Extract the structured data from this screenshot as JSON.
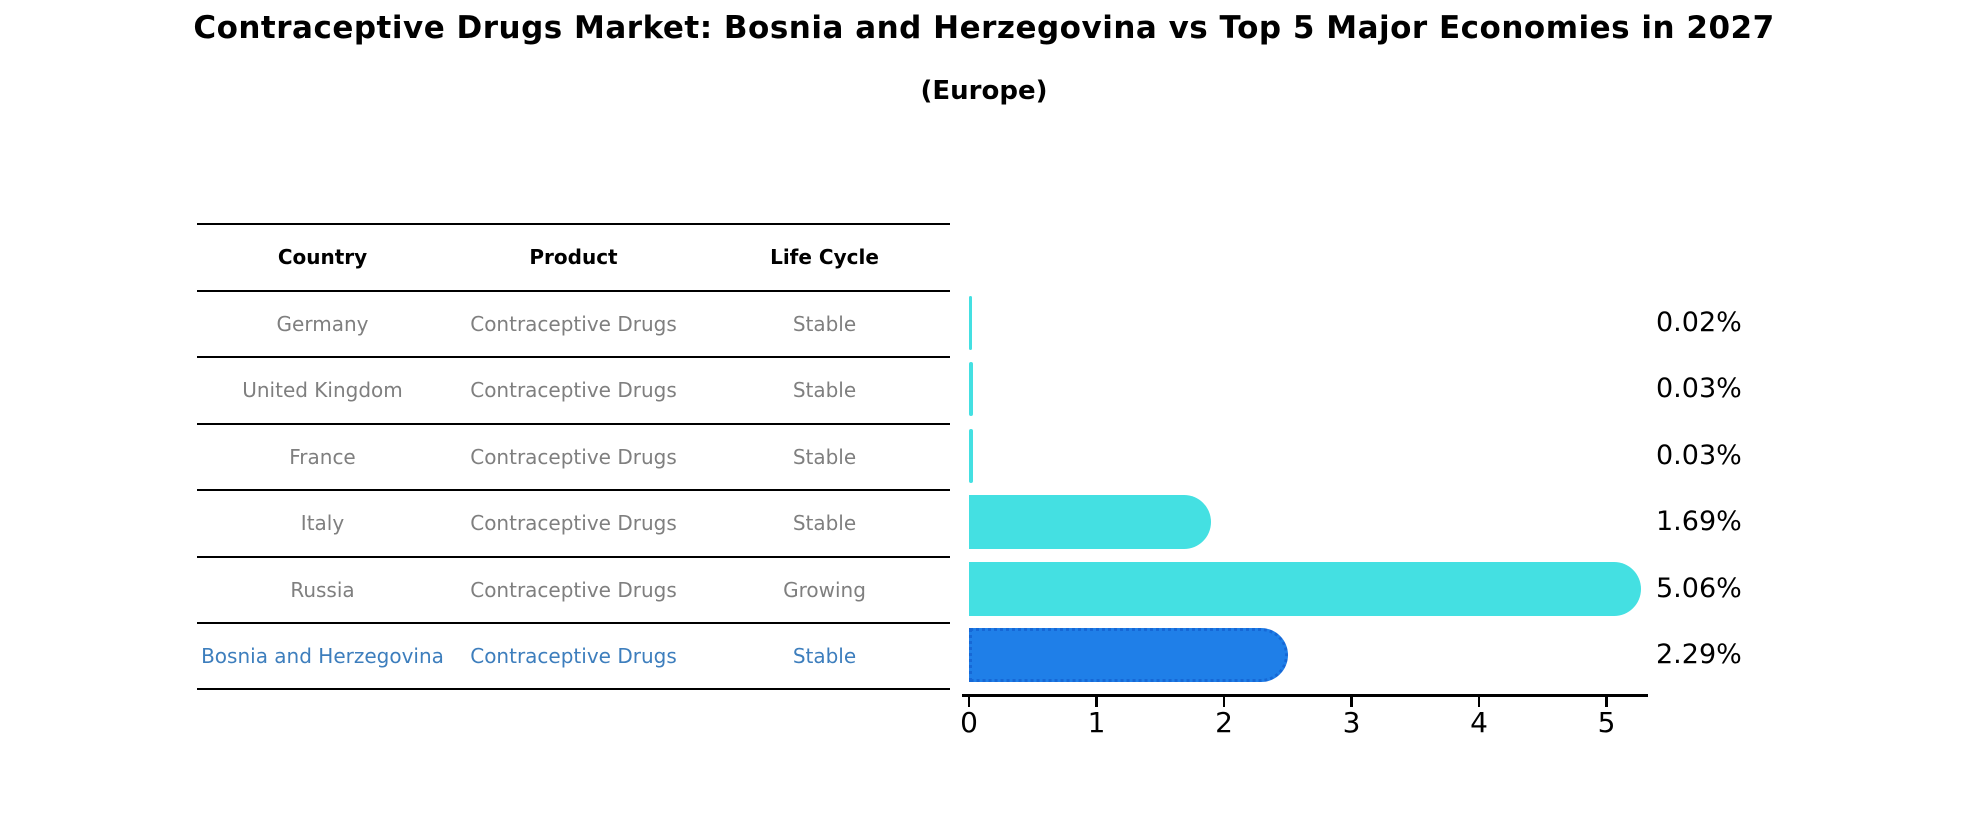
{
  "colors": {
    "bar_default": "#44E0E2",
    "bar_highlight": "#1F7FE8",
    "bar_highlight_border": "#1668D6",
    "row_text": "#7F7F7F",
    "highlight_text": "#3D7EBD"
  },
  "table": {
    "headers": [
      "Country",
      "Product",
      "Life Cycle"
    ],
    "rows": [
      {
        "country": "Germany",
        "product": "Contraceptive Drugs",
        "life_cycle": "Stable",
        "highlight": false
      },
      {
        "country": "United Kingdom",
        "product": "Contraceptive Drugs",
        "life_cycle": "Stable",
        "highlight": false
      },
      {
        "country": "France",
        "product": "Contraceptive Drugs",
        "life_cycle": "Stable",
        "highlight": false
      },
      {
        "country": "Italy",
        "product": "Contraceptive Drugs",
        "life_cycle": "Stable",
        "highlight": false
      },
      {
        "country": "Russia",
        "product": "Contraceptive Drugs",
        "life_cycle": "Growing",
        "highlight": false
      },
      {
        "country": "Bosnia and Herzegovina",
        "product": "Contraceptive Drugs",
        "life_cycle": "Stable",
        "highlight": true
      }
    ]
  },
  "chart_data": {
    "type": "bar",
    "orientation": "horizontal",
    "title": "Contraceptive Drugs Market: Bosnia and Herzegovina vs Top 5 Major Economies in 2027",
    "subtitle": "(Europe)",
    "categories": [
      "Germany",
      "United Kingdom",
      "France",
      "Italy",
      "Russia",
      "Bosnia and Herzegovina"
    ],
    "values": [
      0.02,
      0.03,
      0.03,
      1.69,
      5.06,
      2.29
    ],
    "value_labels": [
      "0.02%",
      "0.03%",
      "0.03%",
      "1.69%",
      "5.06%",
      "2.29%"
    ],
    "highlight_index": 5,
    "xlabel": "",
    "ylabel": "",
    "xlim": [
      0,
      5.4
    ],
    "xticks": [
      0,
      1,
      2,
      3,
      4,
      5
    ],
    "grid": false,
    "legend": false
  }
}
